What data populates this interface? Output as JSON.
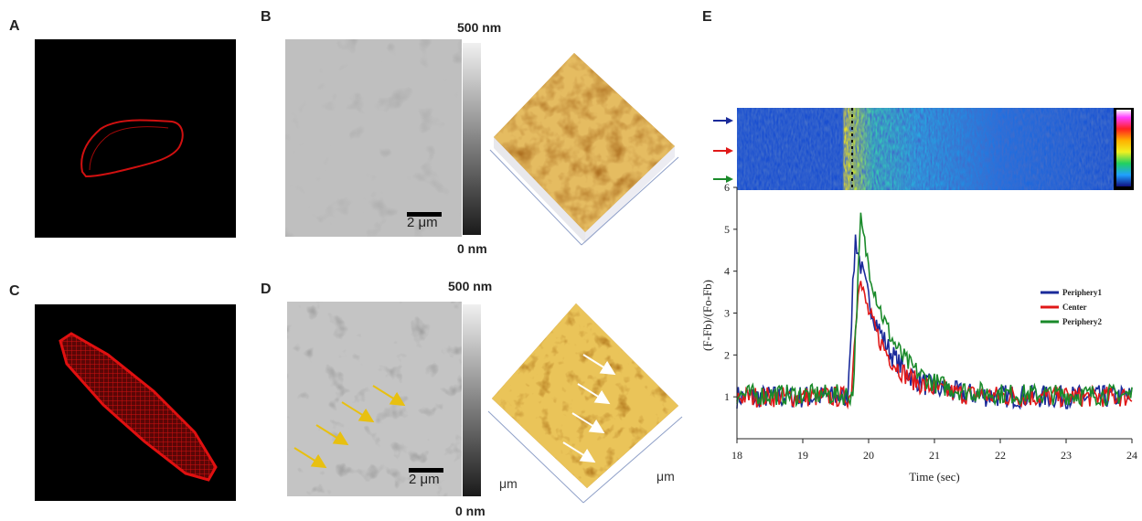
{
  "figure": {
    "panels": {
      "A": {
        "label": "A"
      },
      "B": {
        "label": "B",
        "scale_max": "500 nm",
        "scale_min": "0 nm",
        "scale_bar": "2 μm"
      },
      "C": {
        "label": "C"
      },
      "D": {
        "label": "D",
        "scale_max": "500 nm",
        "scale_min": "0 nm",
        "scale_bar": "2 μm",
        "axis_unit_left": "μm",
        "axis_unit_right": "μm"
      },
      "E": {
        "label": "E"
      }
    },
    "colors": {
      "cell_red": "#d01010",
      "afm_gold": "#c9891f",
      "periphery1": "#1a2a9a",
      "center": "#e01818",
      "periphery2": "#1a8a2a",
      "arrow_yellow": "#e8c010"
    }
  },
  "chart_data": {
    "type": "line",
    "xlabel": "Time (sec)",
    "ylabel": "(F-Fb)/(Fo-Fb)",
    "xlim": [
      18,
      24
    ],
    "ylim": [
      0,
      6
    ],
    "xticks": [
      "18",
      "19",
      "20",
      "21",
      "22",
      "23",
      "24"
    ],
    "yticks": [
      "1",
      "2",
      "3",
      "4",
      "5",
      "6"
    ],
    "legend_position": "right",
    "series": [
      {
        "name": "Periphery1",
        "color": "#1a2a9a",
        "baseline": 1.0,
        "peak_x": 19.8,
        "peak_y": 4.8,
        "noise": 0.28
      },
      {
        "name": "Center",
        "color": "#e01818",
        "baseline": 1.0,
        "peak_x": 19.85,
        "peak_y": 3.9,
        "noise": 0.25
      },
      {
        "name": "Periphery2",
        "color": "#1a8a2a",
        "baseline": 1.05,
        "peak_x": 19.88,
        "peak_y": 5.2,
        "noise": 0.25
      }
    ]
  }
}
